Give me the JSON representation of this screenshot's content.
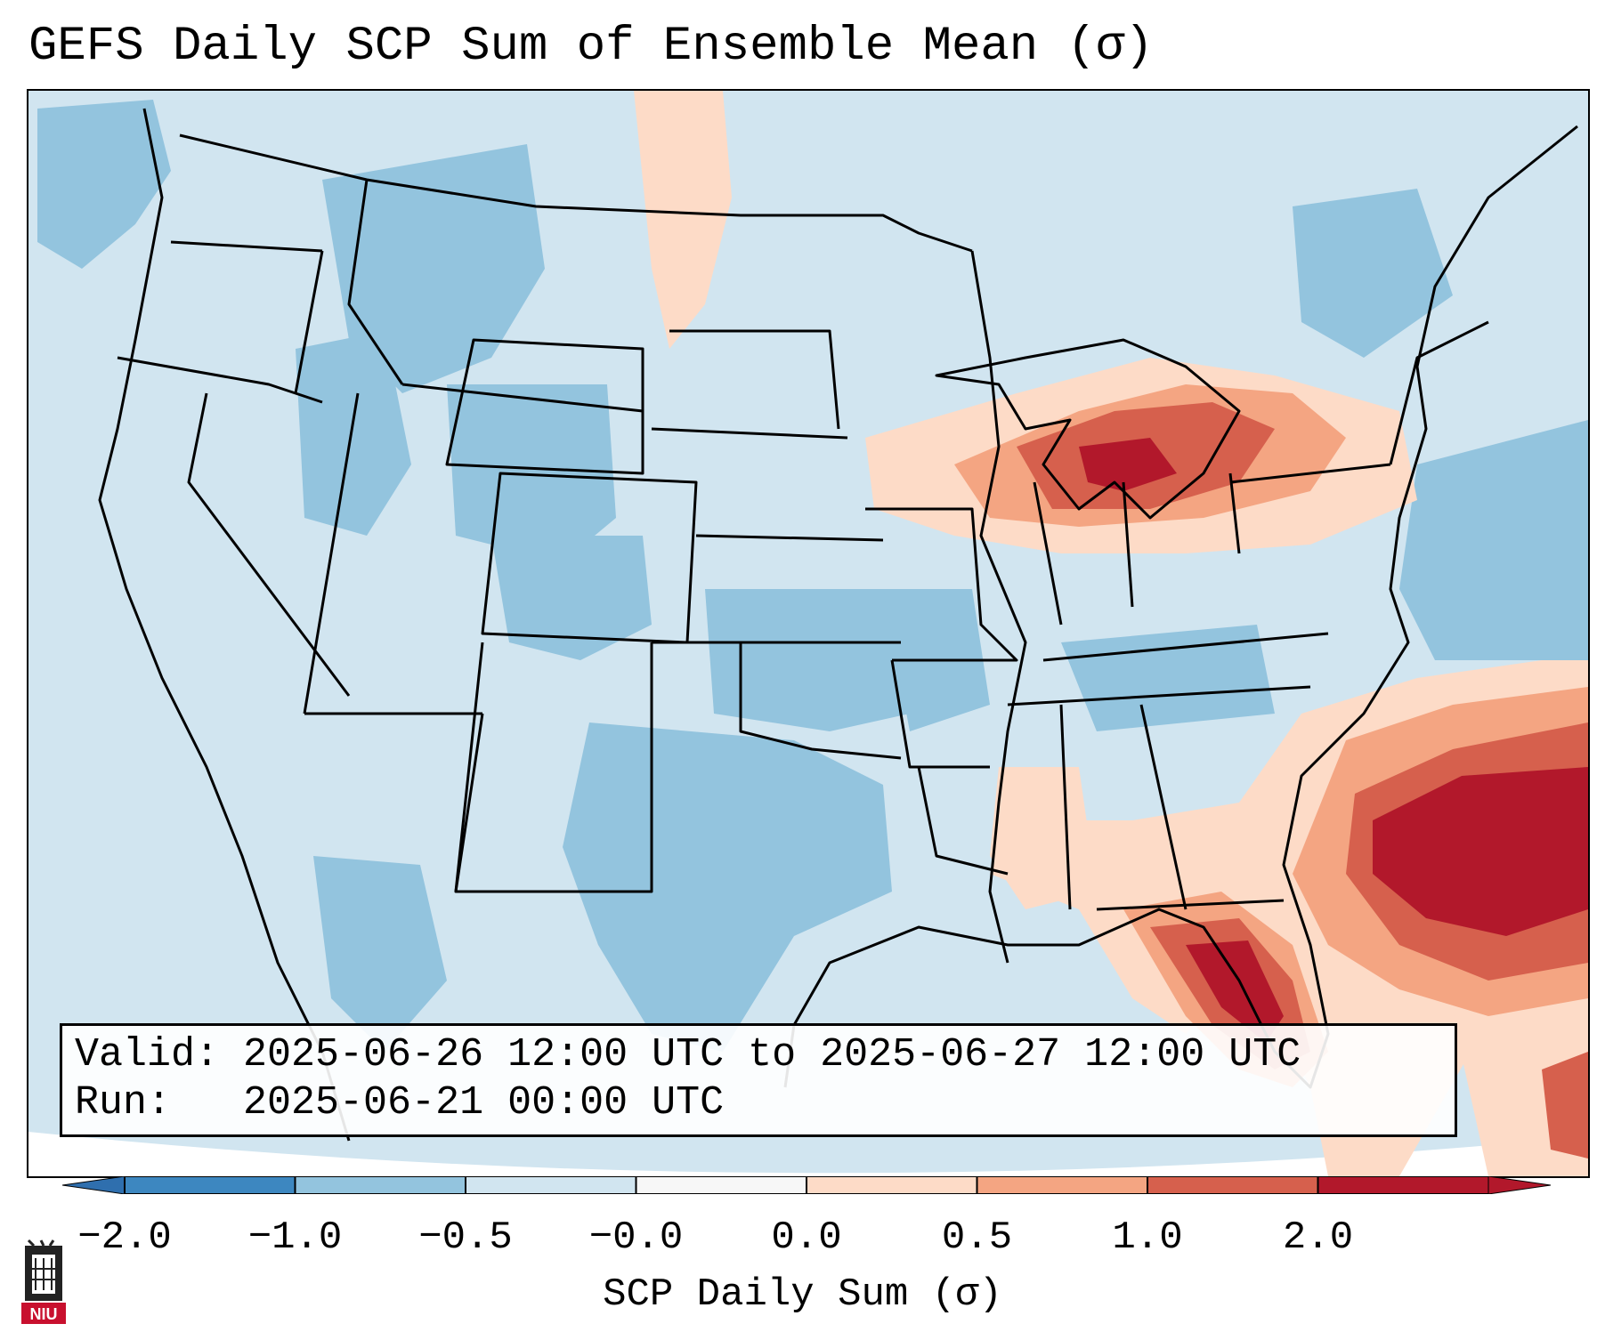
{
  "title": "GEFS Daily SCP Sum of Ensemble Mean (σ)",
  "info": {
    "valid_line": "Valid: 2025-06-26 12:00 UTC to 2025-06-27 12:00 UTC",
    "run_line": "Run:   2025-06-21 00:00 UTC"
  },
  "colorbar": {
    "label": "SCP Daily Sum (σ)",
    "ticks": [
      "−2.0",
      "−1.0",
      "−0.5",
      "−0.0",
      "0.0",
      "0.5",
      "1.0",
      "2.0"
    ],
    "colors": [
      "#3d87c0",
      "#93c4de",
      "#d1e5f0",
      "#f7f7f7",
      "#fddbc7",
      "#f4a582",
      "#d6604d",
      "#b2182b"
    ],
    "extend_low_color": "#2f6fae",
    "extend_high_color": "#b2182b"
  },
  "map": {
    "background_color": "#d1e5f0",
    "regions": [
      {
        "name": "great-lakes-positive",
        "level": "1.0"
      },
      {
        "name": "southeast-atlantic-positive",
        "level": "2.0"
      },
      {
        "name": "florida-gulf-positive",
        "level": "2.0"
      },
      {
        "name": "rockies-negative",
        "level": "-1.0"
      },
      {
        "name": "texas-negative",
        "level": "-1.0"
      }
    ]
  },
  "logo": {
    "text": "NIU",
    "color": "#c8102e"
  }
}
